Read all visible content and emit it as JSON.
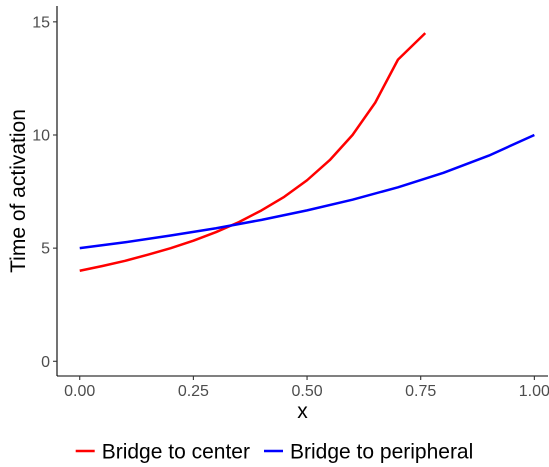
{
  "chart_data": {
    "type": "line",
    "title": "",
    "xlabel": "x",
    "ylabel": "Time of activation",
    "xlim": [
      -0.05,
      1.03
    ],
    "ylim": [
      -0.65,
      15.7
    ],
    "x_ticks": [
      0,
      0.25,
      0.5,
      0.75,
      1
    ],
    "x_tick_labels": [
      "0.00",
      "0.25",
      "0.50",
      "0.75",
      "1.00"
    ],
    "y_ticks": [
      0,
      5,
      10,
      15
    ],
    "y_tick_labels": [
      "0",
      "5",
      "10",
      "15"
    ],
    "grid": false,
    "legend_position": "bottom",
    "series": [
      {
        "name": "Bridge to center",
        "color": "#ff0000",
        "points": [
          [
            0.0,
            4.0
          ],
          [
            0.05,
            4.21
          ],
          [
            0.1,
            4.44
          ],
          [
            0.15,
            4.71
          ],
          [
            0.2,
            5.0
          ],
          [
            0.25,
            5.33
          ],
          [
            0.3,
            5.71
          ],
          [
            0.35,
            6.15
          ],
          [
            0.4,
            6.67
          ],
          [
            0.45,
            7.27
          ],
          [
            0.5,
            8.0
          ],
          [
            0.55,
            8.89
          ],
          [
            0.6,
            10.0
          ],
          [
            0.65,
            11.43
          ],
          [
            0.7,
            13.33
          ],
          [
            0.76,
            14.5
          ]
        ]
      },
      {
        "name": "Bridge to peripheral",
        "color": "#0000ff",
        "points": [
          [
            0.0,
            5.0
          ],
          [
            0.1,
            5.26
          ],
          [
            0.2,
            5.56
          ],
          [
            0.3,
            5.88
          ],
          [
            0.4,
            6.25
          ],
          [
            0.5,
            6.67
          ],
          [
            0.6,
            7.14
          ],
          [
            0.7,
            7.69
          ],
          [
            0.8,
            8.33
          ],
          [
            0.9,
            9.09
          ],
          [
            1.0,
            10.0
          ]
        ]
      }
    ]
  }
}
